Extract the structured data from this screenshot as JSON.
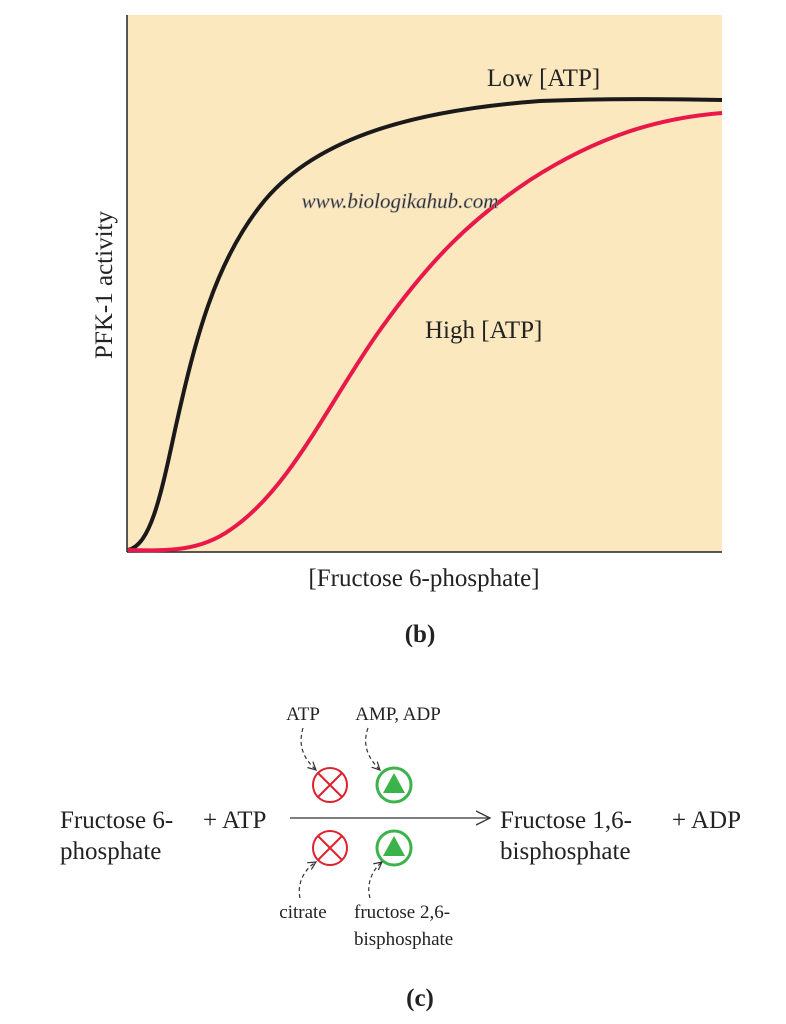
{
  "panel_b": {
    "curve_labels": [
      "Low [ATP]",
      "High [ATP]"
    ],
    "y_axis_label": "PFK-1 activity",
    "x_axis_label": "[Fructose 6-phosphate]",
    "watermark": "www.biologikahub.com",
    "caption": "(b)"
  },
  "panel_c": {
    "substrate": [
      "Fructose 6-",
      "phosphate"
    ],
    "cosubstrate": "+ ATP",
    "product": [
      "Fructose 1,6-",
      "bisphosphate"
    ],
    "coproduct": "+ ADP",
    "inhibitors": [
      "ATP",
      "citrate"
    ],
    "activators": [
      [
        "AMP, ADP"
      ],
      [
        "fructose 2,6-",
        "bisphosphate"
      ]
    ],
    "caption": "(c)"
  }
}
